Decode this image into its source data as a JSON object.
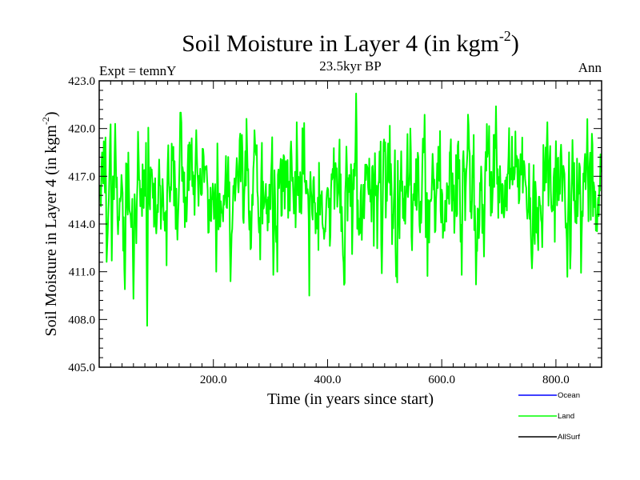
{
  "chart_data": {
    "type": "line",
    "title": "Soil Moisture in Layer 4 (in kgm",
    "title_superscript": "-2",
    "title_close": ")",
    "subtitle": "23.5kyr BP",
    "left_label": "Expt = temnY",
    "right_label": "Ann",
    "xlabel": "Time (in years since start)",
    "ylabel": "Soil Moisture in Layer 4 (in kgm",
    "ylabel_superscript": "-2",
    "ylabel_close": ")",
    "xlim": [
      0,
      880
    ],
    "ylim": [
      405,
      423
    ],
    "xticks_major": [
      200,
      400,
      600,
      800
    ],
    "xtick_labels": [
      "200.0",
      "400.0",
      "600.0",
      "800.0"
    ],
    "xtick_minor_step": 20,
    "yticks_major": [
      405,
      408,
      411,
      414,
      417,
      420,
      423
    ],
    "ytick_labels": [
      "405.0",
      "408.0",
      "411.0",
      "414.0",
      "417.0",
      "420.0",
      "423.0"
    ],
    "ytick_minor_step": 0.6,
    "series": [
      {
        "name": "Land",
        "color": "#00ff00",
        "x_start": 1,
        "x_step": 1,
        "n_points": 880,
        "mean": 416.3,
        "std": 1.9,
        "min": 407.6,
        "max": 422.2,
        "anchors": [
          {
            "x": 2,
            "y": 415.8
          },
          {
            "x": 5,
            "y": 418.5
          },
          {
            "x": 8,
            "y": 419.2
          },
          {
            "x": 15,
            "y": 413.5
          },
          {
            "x": 22,
            "y": 411.7
          },
          {
            "x": 28,
            "y": 420.3
          },
          {
            "x": 40,
            "y": 416.5
          },
          {
            "x": 45,
            "y": 409.9
          },
          {
            "x": 60,
            "y": 409.3
          },
          {
            "x": 75,
            "y": 414.5
          },
          {
            "x": 84,
            "y": 407.6
          },
          {
            "x": 120,
            "y": 417.8
          },
          {
            "x": 170,
            "y": 419.9
          },
          {
            "x": 205,
            "y": 411.0
          },
          {
            "x": 230,
            "y": 410.4
          },
          {
            "x": 250,
            "y": 419.6
          },
          {
            "x": 305,
            "y": 410.8
          },
          {
            "x": 450,
            "y": 422.2
          },
          {
            "x": 460,
            "y": 413.0
          },
          {
            "x": 495,
            "y": 410.9
          },
          {
            "x": 520,
            "y": 410.7
          },
          {
            "x": 545,
            "y": 420.0
          },
          {
            "x": 635,
            "y": 410.8
          },
          {
            "x": 660,
            "y": 410.2
          },
          {
            "x": 695,
            "y": 421.4
          },
          {
            "x": 785,
            "y": 420.4
          },
          {
            "x": 825,
            "y": 411.2
          },
          {
            "x": 855,
            "y": 420.6
          },
          {
            "x": 875,
            "y": 414.5
          }
        ]
      },
      {
        "name": "Ocean",
        "color": "#0000ff",
        "values": []
      },
      {
        "name": "AllSurf",
        "color": "#000000",
        "values": []
      }
    ],
    "legend": {
      "position": "bottom-right",
      "entries": [
        {
          "label": "Ocean",
          "color": "#0000ff"
        },
        {
          "label": "Land",
          "color": "#00ff00"
        },
        {
          "label": "AllSurf",
          "color": "#000000"
        }
      ]
    }
  }
}
